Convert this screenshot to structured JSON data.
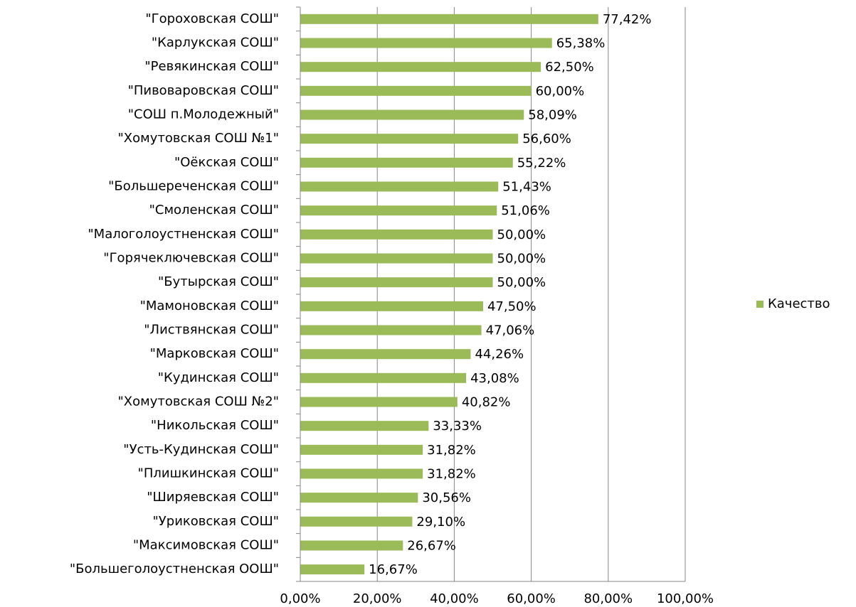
{
  "chart_data": {
    "type": "bar",
    "orientation": "horizontal",
    "categories": [
      "\"Гороховская СОШ\"",
      "\"Карлукская СОШ\"",
      "\"Ревякинская СОШ\"",
      "\"Пивоваровская СОШ\"",
      "\"СОШ п.Молодежный\"",
      "\"Хомутовская СОШ №1\"",
      "\"Оёкская СОШ\"",
      "\"Большереченская СОШ\"",
      "\"Смоленская СОШ\"",
      "\"Малоголоустненская СОШ\"",
      "\"Горячеключевская СОШ\"",
      "\"Бутырская СОШ\"",
      "\"Мамоновская СОШ\"",
      "\"Листвянская СОШ\"",
      "\"Марковская СОШ\"",
      "\"Кудинская СОШ\"",
      "\"Хомутовская СОШ №2\"",
      "\"Никольская СОШ\"",
      "\"Усть-Кудинская СОШ\"",
      "\"Плишкинская СОШ\"",
      "\"Ширяевская СОШ\"",
      "\"Уриковская СОШ\"",
      "\"Максимовская СОШ\"",
      "\"Большеголоустненская ООШ\""
    ],
    "series": [
      {
        "name": "Качество",
        "color": "#9bbb59",
        "values": [
          77.42,
          65.38,
          62.5,
          60,
          58.09,
          56.6,
          55.22,
          51.43,
          51.06,
          50,
          50,
          50,
          47.5,
          47.06,
          44.26,
          43.08,
          40.82,
          33.33,
          31.82,
          31.82,
          30.56,
          29.1,
          26.67,
          16.67
        ],
        "value_labels": [
          "77,42%",
          "65,38%",
          "62,50%",
          "60,00%",
          "58,09%",
          "56,60%",
          "55,22%",
          "51,43%",
          "51,06%",
          "50,00%",
          "50,00%",
          "50,00%",
          "47,50%",
          "47,06%",
          "44,26%",
          "43,08%",
          "40,82%",
          "33,33%",
          "31,82%",
          "31,82%",
          "30,56%",
          "29,10%",
          "26,67%",
          "16,67%"
        ]
      }
    ],
    "xlim": [
      0,
      100
    ],
    "xticks": [
      {
        "value": 0,
        "label": "0,00%"
      },
      {
        "value": 20,
        "label": "20,00%"
      },
      {
        "value": 40,
        "label": "40,00%"
      },
      {
        "value": 60,
        "label": "60,00%"
      },
      {
        "value": 80,
        "label": "80,00%"
      },
      {
        "value": 100,
        "label": "100,00%"
      }
    ],
    "grid": true,
    "legend": "right"
  }
}
